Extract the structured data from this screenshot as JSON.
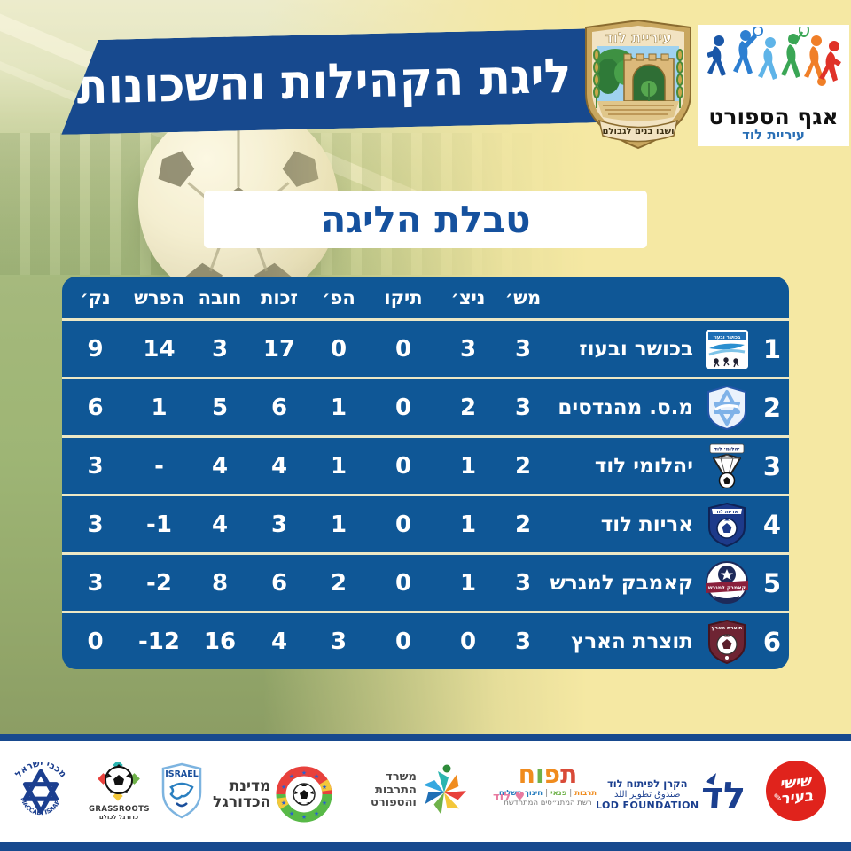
{
  "banner": {
    "title": "ליגת הקהילות והשכונות"
  },
  "emblem": {
    "city": "עיריית לוד",
    "motto": "ושבו בנים לגבולם"
  },
  "sport_dept": {
    "title": "אגף הספורט",
    "subtitle": "עיריית לוד"
  },
  "section": {
    "title": "טבלת הליגה"
  },
  "table": {
    "headers": {
      "games": "מש׳",
      "wins": "ניצ׳",
      "draws": "תיקו",
      "losses": "הפ׳",
      "goals_for": "זכות",
      "goals_against": "חובה",
      "diff": "הפרש",
      "points": "נק׳"
    },
    "rows": [
      {
        "pos": "1",
        "team": "בכושר ובעוז",
        "games": "3",
        "wins": "3",
        "draws": "0",
        "losses": "0",
        "goals_for": "17",
        "goals_against": "3",
        "diff": "14",
        "points": "9"
      },
      {
        "pos": "2",
        "team": "מ.ס. מהנדסים",
        "games": "3",
        "wins": "2",
        "draws": "0",
        "losses": "1",
        "goals_for": "6",
        "goals_against": "5",
        "diff": "1",
        "points": "6"
      },
      {
        "pos": "3",
        "team": "יהלומי לוד",
        "games": "2",
        "wins": "1",
        "draws": "0",
        "losses": "1",
        "goals_for": "4",
        "goals_against": "4",
        "diff": "-",
        "points": "3"
      },
      {
        "pos": "4",
        "team": "אריות לוד",
        "games": "2",
        "wins": "1",
        "draws": "0",
        "losses": "1",
        "goals_for": "3",
        "goals_against": "4",
        "diff": "-1",
        "points": "3"
      },
      {
        "pos": "5",
        "team": "קאמבק למגרש",
        "games": "3",
        "wins": "1",
        "draws": "0",
        "losses": "2",
        "goals_for": "6",
        "goals_against": "8",
        "diff": "-2",
        "points": "3"
      },
      {
        "pos": "6",
        "team": "תוצרת הארץ",
        "games": "3",
        "wins": "0",
        "draws": "0",
        "losses": "3",
        "goals_for": "4",
        "goals_against": "16",
        "diff": "-12",
        "points": "0"
      }
    ]
  },
  "sponsors": {
    "maccabi": {
      "hebrew": "מכבי ישראל",
      "english": "MACCABI ISRAEL"
    },
    "grassroots": {
      "title": "GRASSROOTS",
      "subtitle": "כדורגל לכולם"
    },
    "israel_fa": {
      "title": "ISRAEL"
    },
    "football_state": {
      "line1": "מדינת",
      "line2": "הכדורגל"
    },
    "ministry": {
      "line1": "משרד",
      "line2": "התרבות",
      "line3": "והספורט"
    },
    "tapuach": {
      "title": "תפוח",
      "tags": "תרבות | פנאי | חינוך משלים",
      "subtitle": "רשת המתנ״סים המתחדשת",
      "heart": "לוד"
    },
    "lod_foundation": {
      "hebrew": "הקרן לפיתוח לוד",
      "arabic": "صندوق تطوير اللد",
      "english": "LOD FOUNDATION",
      "mark": "לד"
    },
    "shishi": {
      "line1": "שישי",
      "line2": "בעיר"
    }
  },
  "colors": {
    "banner_blue": "#17498E",
    "table_blue": "#0F5796",
    "background": "#F5E8A3",
    "title_text": "#15519E",
    "separator": "#EDE8C5"
  }
}
